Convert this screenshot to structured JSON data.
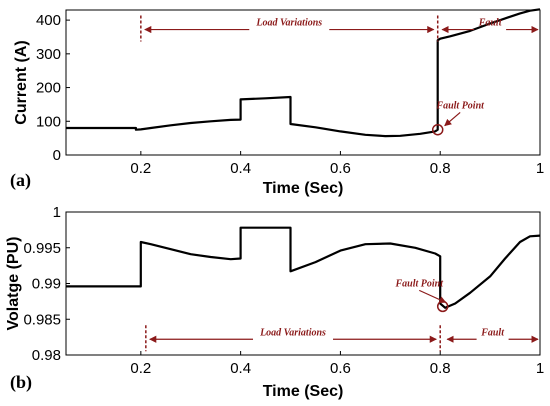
{
  "colors": {
    "line": "#000000",
    "annotation": "#8b1a1a"
  },
  "chart_data": [
    {
      "type": "line",
      "panel_label": "(a)",
      "xlabel": "Time (Sec)",
      "ylabel": "Current (A)",
      "xlim": [
        0.05,
        1.0
      ],
      "ylim": [
        0,
        430
      ],
      "xticks": [
        0.2,
        0.4,
        0.6,
        0.8,
        1
      ],
      "xtick_labels": [
        "0.2",
        "0.4",
        "0.6",
        "0.8",
        "1"
      ],
      "yticks": [
        0,
        100,
        200,
        300,
        400
      ],
      "ytick_labels": [
        "0",
        "100",
        "200",
        "300",
        "400"
      ],
      "series": [
        {
          "x": [
            0.05,
            0.19,
            0.19,
            0.2,
            0.22,
            0.26,
            0.3,
            0.34,
            0.38,
            0.4,
            0.4,
            0.45,
            0.5,
            0.5,
            0.55,
            0.6,
            0.65,
            0.69,
            0.72,
            0.76,
            0.79,
            0.795,
            0.795,
            0.8,
            0.82,
            0.86,
            0.9,
            0.93,
            0.96,
            0.98,
            1.0
          ],
          "values": [
            80,
            80,
            75,
            76,
            80,
            88,
            95,
            100,
            104,
            105,
            165,
            168,
            172,
            92,
            82,
            70,
            60,
            56,
            57,
            63,
            70,
            75,
            340,
            345,
            352,
            368,
            390,
            405,
            420,
            428,
            432
          ]
        }
      ],
      "annotations": {
        "load_variations": {
          "label": "Load Variations",
          "x_start": 0.2,
          "x_end": 0.795,
          "y": 372
        },
        "fault": {
          "label": "Fault",
          "x_start": 0.8,
          "x_end": 1.0,
          "y": 372
        },
        "fault_point": {
          "label": "Fault Point",
          "x": 0.795,
          "y": 75,
          "text_x": 0.84,
          "text_y": 138
        }
      }
    },
    {
      "type": "line",
      "panel_label": "(b)",
      "xlabel": "Time (Sec)",
      "ylabel": "Volatge (PU)",
      "xlim": [
        0.05,
        1.0
      ],
      "ylim": [
        0.98,
        1.0
      ],
      "xticks": [
        0.2,
        0.4,
        0.6,
        0.8,
        1
      ],
      "xtick_labels": [
        "0.2",
        "0.4",
        "0.6",
        "0.8",
        "1"
      ],
      "yticks": [
        0.98,
        0.985,
        0.99,
        0.995,
        1
      ],
      "ytick_labels": [
        "0.98",
        "0.985",
        "0.99",
        "0.995",
        "1"
      ],
      "series": [
        {
          "x": [
            0.05,
            0.2,
            0.2,
            0.22,
            0.26,
            0.3,
            0.34,
            0.38,
            0.4,
            0.4,
            0.45,
            0.5,
            0.5,
            0.55,
            0.6,
            0.65,
            0.7,
            0.75,
            0.79,
            0.8,
            0.8,
            0.81,
            0.83,
            0.86,
            0.9,
            0.93,
            0.96,
            0.98,
            1.0
          ],
          "values": [
            0.9896,
            0.9896,
            0.9958,
            0.9955,
            0.9948,
            0.9941,
            0.9937,
            0.9934,
            0.9935,
            0.9978,
            0.9978,
            0.9978,
            0.9917,
            0.993,
            0.9946,
            0.9955,
            0.9956,
            0.995,
            0.9942,
            0.9938,
            0.9872,
            0.9866,
            0.9872,
            0.9887,
            0.991,
            0.9935,
            0.9958,
            0.9966,
            0.9967
          ]
        }
      ],
      "annotations": {
        "load_variations": {
          "label": "Load Variations",
          "x_start": 0.21,
          "x_end": 0.8,
          "y": 0.9822
        },
        "fault": {
          "label": "Fault",
          "x_start": 0.81,
          "x_end": 1.0,
          "y": 0.9822
        },
        "fault_point": {
          "label": "Fault Point",
          "x": 0.805,
          "y": 0.9868,
          "text_x": 0.758,
          "text_y": 0.9896
        }
      }
    }
  ]
}
